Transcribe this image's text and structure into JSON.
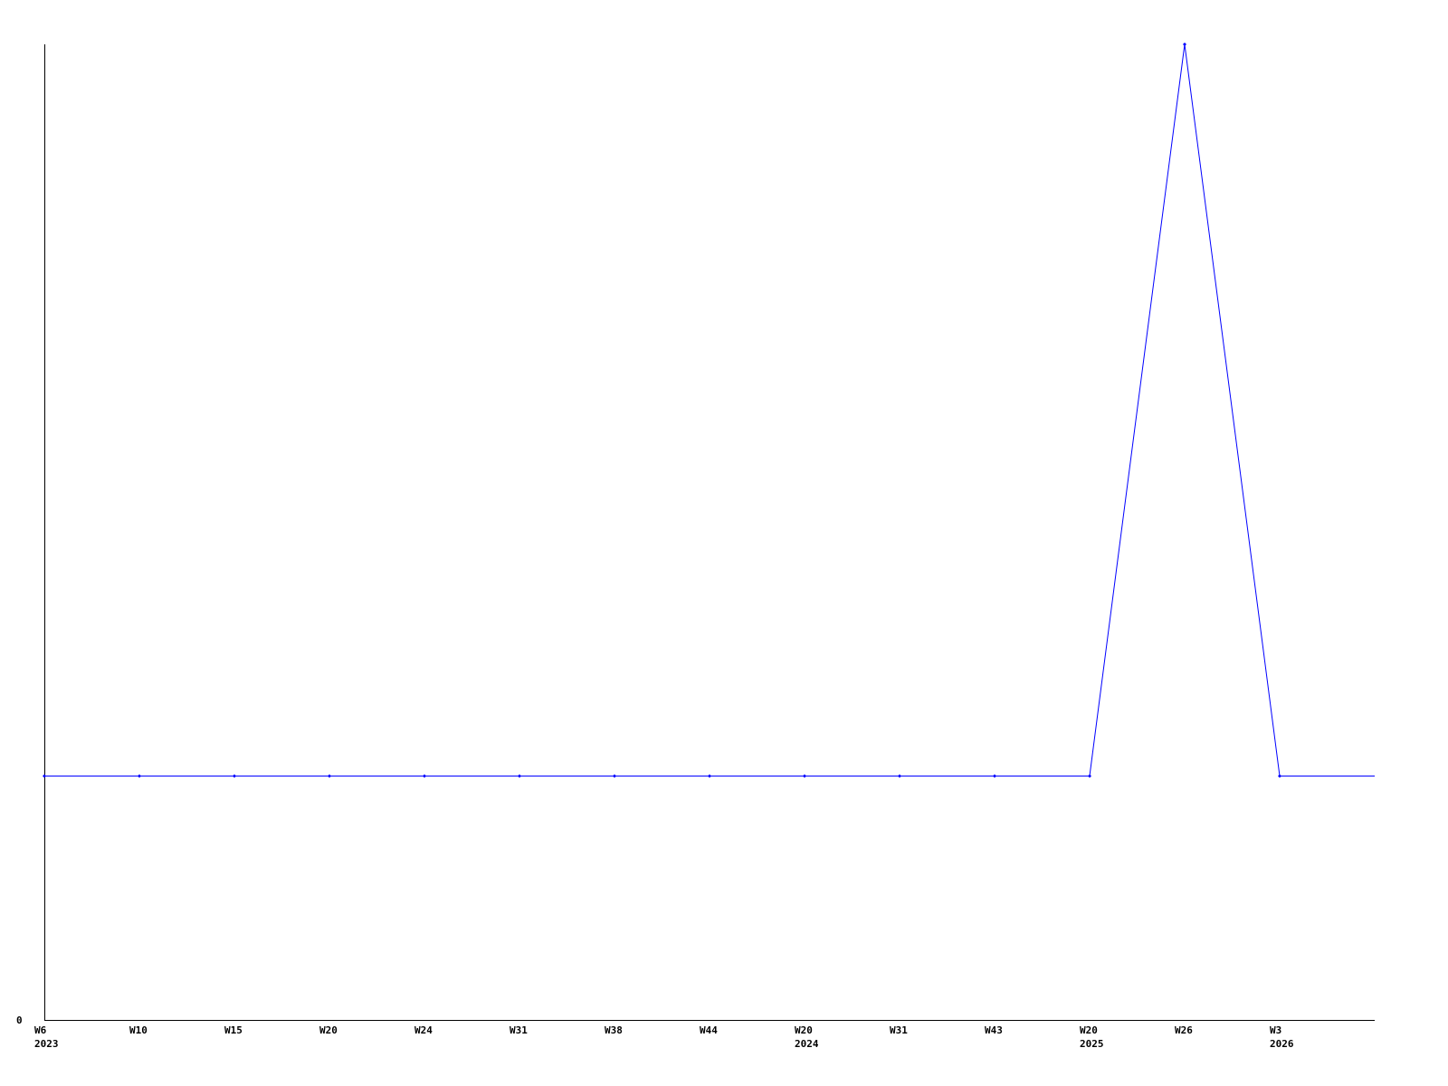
{
  "chart_data": {
    "type": "line",
    "title": "",
    "xlabel": "",
    "ylabel": "",
    "categories": [
      [
        "W6",
        "2023"
      ],
      [
        "W10",
        ""
      ],
      [
        "W15",
        ""
      ],
      [
        "W20",
        ""
      ],
      [
        "W24",
        ""
      ],
      [
        "W31",
        ""
      ],
      [
        "W38",
        ""
      ],
      [
        "W44",
        ""
      ],
      [
        "W20",
        "2024"
      ],
      [
        "W31",
        ""
      ],
      [
        "W43",
        ""
      ],
      [
        "W20",
        "2025"
      ],
      [
        "W26",
        ""
      ],
      [
        "W3",
        "2026"
      ],
      [
        "",
        ""
      ]
    ],
    "values": [
      1,
      1,
      1,
      1,
      1,
      1,
      1,
      1,
      1,
      1,
      1,
      1,
      4,
      1,
      1
    ],
    "ylim": [
      0,
      4
    ],
    "y_tick_labels": [
      "0"
    ],
    "grid": false,
    "line_color": "#0000ff",
    "axis_color": "#000000"
  }
}
